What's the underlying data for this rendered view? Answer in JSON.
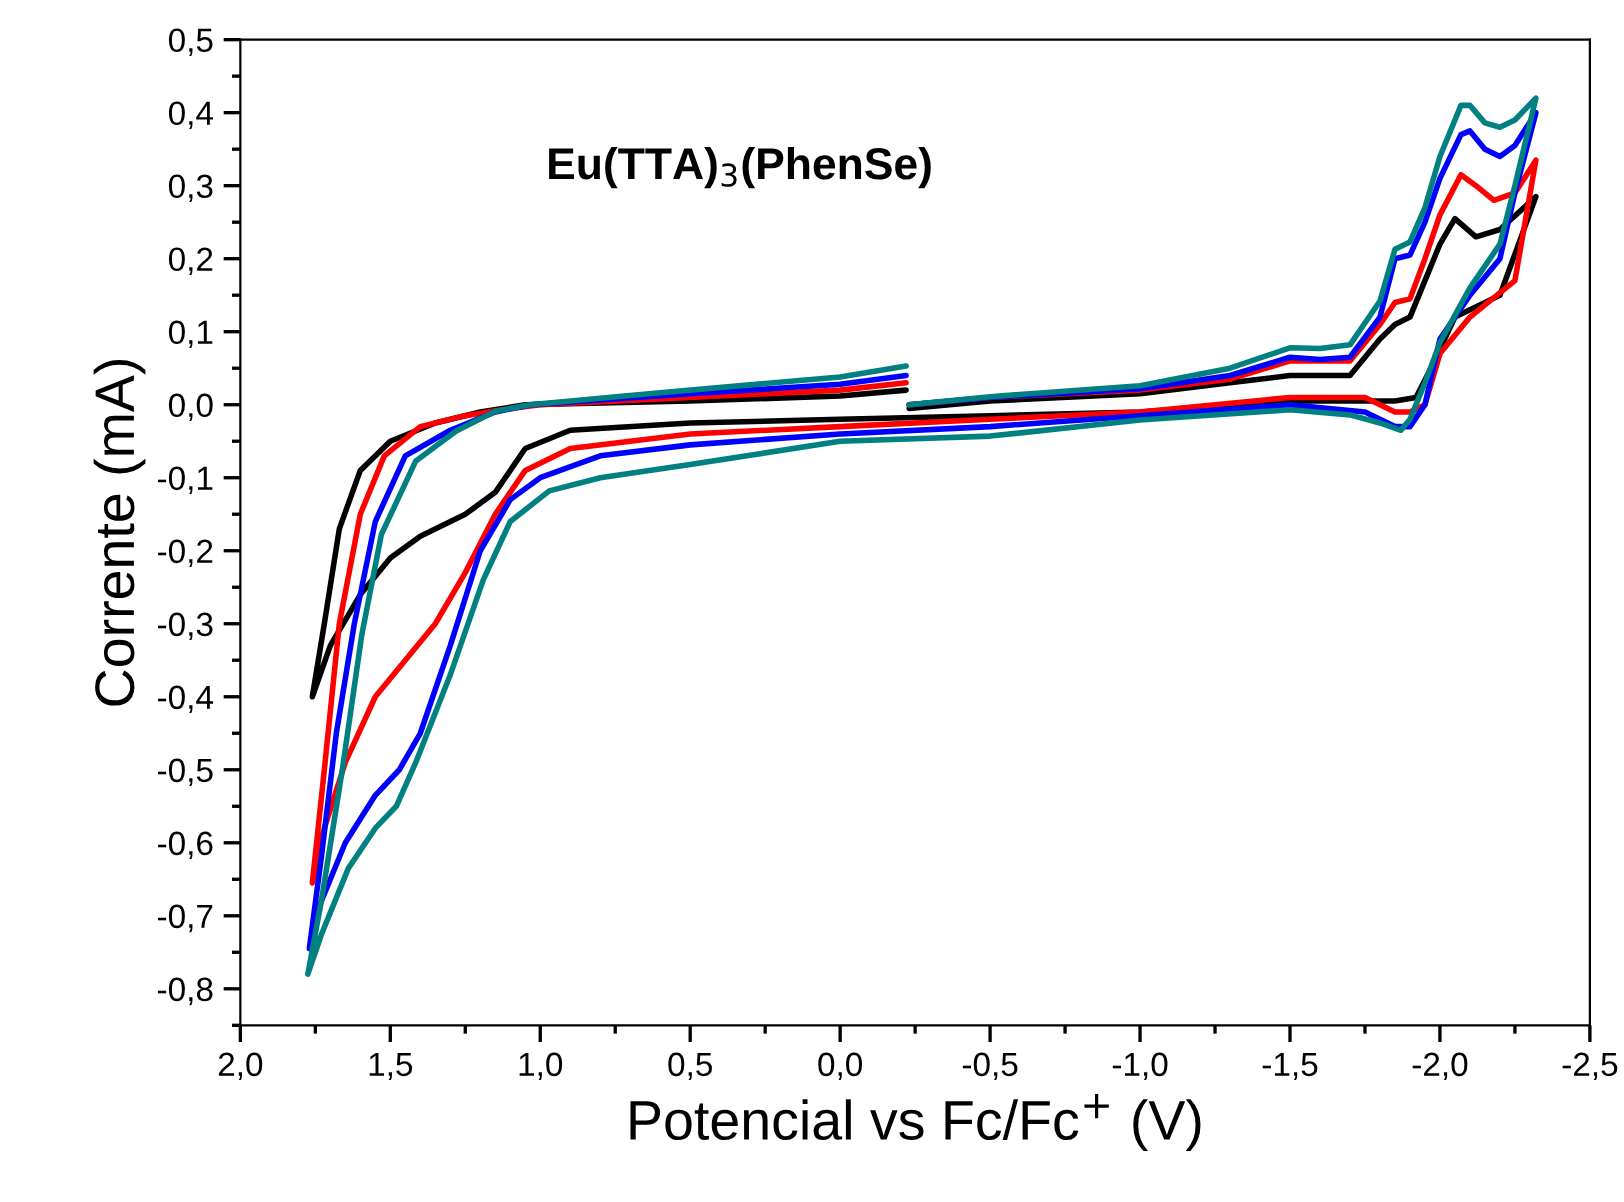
{
  "chart_data": {
    "type": "line",
    "title": "Eu(TTA)$_{3}$(PhenSe)",
    "xlabel": "Potencial vs Fc/Fc$^{+}$ (V)",
    "ylabel": "Corrente (mA)",
    "xlim": [
      2.0,
      -2.5
    ],
    "ylim": [
      -0.85,
      0.5
    ],
    "xticks": [
      {
        "value": 2.0,
        "label": "2,0"
      },
      {
        "value": 1.5,
        "label": "1,5"
      },
      {
        "value": 1.0,
        "label": "1,0"
      },
      {
        "value": 0.5,
        "label": "0,5"
      },
      {
        "value": 0.0,
        "label": "0,0"
      },
      {
        "value": -0.5,
        "label": "-0,5"
      },
      {
        "value": -1.0,
        "label": "-1,0"
      },
      {
        "value": -1.5,
        "label": "-1,5"
      },
      {
        "value": -2.0,
        "label": "-2,0"
      },
      {
        "value": -2.5,
        "label": "-2,5"
      }
    ],
    "yticks": [
      {
        "value": 0.5,
        "label": "0,5"
      },
      {
        "value": 0.4,
        "label": "0,4"
      },
      {
        "value": 0.3,
        "label": "0,3"
      },
      {
        "value": 0.2,
        "label": "0,2"
      },
      {
        "value": 0.1,
        "label": "0,1"
      },
      {
        "value": 0.0,
        "label": "0,0"
      },
      {
        "value": -0.1,
        "label": "-0,1"
      },
      {
        "value": -0.2,
        "label": "-0,2"
      },
      {
        "value": -0.3,
        "label": "-0,3"
      },
      {
        "value": -0.4,
        "label": "-0,4"
      },
      {
        "value": -0.5,
        "label": "-0,5"
      },
      {
        "value": -0.6,
        "label": "-0,6"
      },
      {
        "value": -0.7,
        "label": "-0,7"
      },
      {
        "value": -0.8,
        "label": "-0,8"
      }
    ],
    "grid": false,
    "marker": "none",
    "line_style": "solid",
    "series": [
      {
        "color": "#000000",
        "x": [
          -0.23,
          -0.5,
          -1.0,
          -1.3,
          -1.5,
          -1.7,
          -1.8,
          -1.85,
          -1.9,
          -1.95,
          -2.0,
          -2.05,
          -2.12,
          -2.2,
          -2.32,
          -2.2,
          -2.05,
          -1.97,
          -1.92,
          -1.85,
          -1.5,
          -1.0,
          -0.5,
          0.0,
          0.5,
          0.9,
          1.05,
          1.15,
          1.25,
          1.4,
          1.5,
          1.6,
          1.7,
          1.76,
          1.72,
          1.67,
          1.6,
          1.5,
          1.35,
          1.2,
          1.05,
          0.5,
          0.0,
          -0.22
        ],
        "values": [
          -0.005,
          0.005,
          0.015,
          0.03,
          0.04,
          0.04,
          0.09,
          0.11,
          0.12,
          0.17,
          0.22,
          0.255,
          0.23,
          0.24,
          0.285,
          0.15,
          0.12,
          0.05,
          0.01,
          0.005,
          0.005,
          -0.01,
          -0.015,
          -0.02,
          -0.025,
          -0.035,
          -0.06,
          -0.12,
          -0.15,
          -0.18,
          -0.21,
          -0.26,
          -0.33,
          -0.4,
          -0.3,
          -0.17,
          -0.09,
          -0.05,
          -0.025,
          -0.01,
          0.0,
          0.005,
          0.012,
          0.02
        ]
      },
      {
        "color": "#ff0000",
        "x": [
          -0.23,
          -0.5,
          -1.0,
          -1.3,
          -1.5,
          -1.7,
          -1.8,
          -1.85,
          -1.9,
          -1.95,
          -2.0,
          -2.07,
          -2.12,
          -2.18,
          -2.25,
          -2.32,
          -2.25,
          -2.1,
          -2.0,
          -1.95,
          -1.9,
          -1.85,
          -1.75,
          -1.5,
          -1.0,
          -0.5,
          0.0,
          0.5,
          0.9,
          1.05,
          1.15,
          1.25,
          1.35,
          1.45,
          1.55,
          1.65,
          1.72,
          1.76,
          1.72,
          1.67,
          1.6,
          1.52,
          1.4,
          1.25,
          1.1,
          1.0,
          0.5,
          0.0,
          -0.22
        ],
        "values": [
          0.0,
          0.01,
          0.02,
          0.035,
          0.06,
          0.06,
          0.11,
          0.14,
          0.145,
          0.2,
          0.26,
          0.315,
          0.3,
          0.28,
          0.29,
          0.335,
          0.17,
          0.12,
          0.07,
          0.0,
          -0.01,
          -0.01,
          0.01,
          0.01,
          -0.01,
          -0.02,
          -0.03,
          -0.04,
          -0.06,
          -0.09,
          -0.15,
          -0.23,
          -0.3,
          -0.35,
          -0.4,
          -0.49,
          -0.58,
          -0.655,
          -0.5,
          -0.3,
          -0.15,
          -0.07,
          -0.03,
          -0.015,
          -0.005,
          0.0,
          0.01,
          0.02,
          0.03
        ]
      },
      {
        "color": "#0000ff",
        "x": [
          -0.23,
          -0.5,
          -1.0,
          -1.3,
          -1.5,
          -1.6,
          -1.7,
          -1.8,
          -1.85,
          -1.9,
          -1.95,
          -2.0,
          -2.07,
          -2.1,
          -2.15,
          -2.2,
          -2.25,
          -2.32,
          -2.25,
          -2.2,
          -2.1,
          -2.0,
          -1.95,
          -1.9,
          -1.85,
          -1.75,
          -1.5,
          -1.0,
          -0.5,
          0.0,
          0.5,
          0.8,
          1.0,
          1.1,
          1.2,
          1.3,
          1.4,
          1.47,
          1.55,
          1.65,
          1.74,
          1.77,
          1.73,
          1.68,
          1.62,
          1.55,
          1.45,
          1.3,
          1.15,
          1.03,
          0.5,
          0.0,
          -0.22
        ],
        "values": [
          0.0,
          0.01,
          0.022,
          0.04,
          0.065,
          0.062,
          0.065,
          0.12,
          0.2,
          0.205,
          0.25,
          0.31,
          0.37,
          0.375,
          0.35,
          0.34,
          0.355,
          0.4,
          0.29,
          0.2,
          0.15,
          0.09,
          0.0,
          -0.03,
          -0.03,
          -0.01,
          0.0,
          -0.015,
          -0.03,
          -0.04,
          -0.055,
          -0.07,
          -0.1,
          -0.13,
          -0.2,
          -0.33,
          -0.45,
          -0.5,
          -0.535,
          -0.6,
          -0.69,
          -0.745,
          -0.62,
          -0.45,
          -0.3,
          -0.16,
          -0.07,
          -0.035,
          -0.01,
          0.0,
          0.015,
          0.028,
          0.04
        ]
      },
      {
        "color": "#008080",
        "x": [
          -0.23,
          -0.5,
          -1.0,
          -1.3,
          -1.5,
          -1.6,
          -1.7,
          -1.8,
          -1.85,
          -1.9,
          -1.95,
          -2.0,
          -2.07,
          -2.1,
          -2.15,
          -2.2,
          -2.25,
          -2.32,
          -2.25,
          -2.2,
          -2.1,
          -2.0,
          -1.95,
          -1.9,
          -1.87,
          -1.8,
          -1.7,
          -1.5,
          -1.0,
          -0.5,
          0.0,
          0.5,
          0.8,
          0.97,
          1.1,
          1.19,
          1.3,
          1.415,
          1.48,
          1.55,
          1.64,
          1.73,
          1.775,
          1.73,
          1.66,
          1.595,
          1.53,
          1.415,
          1.28,
          1.15,
          1.035,
          0.61,
          0.0,
          -0.22
        ],
        "values": [
          0.0,
          0.011,
          0.026,
          0.05,
          0.078,
          0.077,
          0.082,
          0.142,
          0.213,
          0.223,
          0.27,
          0.34,
          0.41,
          0.41,
          0.386,
          0.38,
          0.39,
          0.42,
          0.3,
          0.22,
          0.16,
          0.085,
          0.03,
          -0.02,
          -0.035,
          -0.025,
          -0.014,
          -0.007,
          -0.021,
          -0.043,
          -0.05,
          -0.082,
          -0.1,
          -0.118,
          -0.16,
          -0.24,
          -0.37,
          -0.49,
          -0.55,
          -0.58,
          -0.635,
          -0.726,
          -0.78,
          -0.68,
          -0.5,
          -0.315,
          -0.178,
          -0.077,
          -0.036,
          -0.009,
          0.0,
          0.016,
          0.038,
          0.053
        ]
      }
    ]
  }
}
